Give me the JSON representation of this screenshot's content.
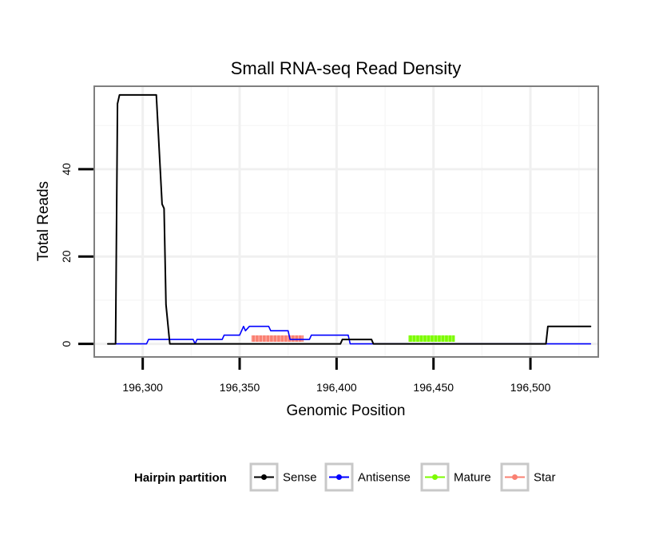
{
  "chart_data": {
    "type": "line",
    "title": "Small RNA-seq Read Density",
    "xlabel": "Genomic Position",
    "ylabel": "Total Reads",
    "xlim": [
      196275,
      196535
    ],
    "ylim": [
      -3,
      59
    ],
    "x_ticks": [
      196300,
      196350,
      196400,
      196450,
      196500
    ],
    "x_tick_labels": [
      "196,300",
      "196,350",
      "196,400",
      "196,450",
      "196,500"
    ],
    "y_ticks": [
      0,
      20,
      40
    ],
    "y_tick_labels": [
      "0",
      "20",
      "40"
    ],
    "grid": true,
    "legend": {
      "title": "Hairpin partition",
      "position": "bottom",
      "entries": [
        {
          "name": "Sense",
          "color": "#000000"
        },
        {
          "name": "Antisense",
          "color": "#0000ff"
        },
        {
          "name": "Mature",
          "color": "#7cfc00"
        },
        {
          "name": "Star",
          "color": "#fa8072"
        }
      ]
    },
    "series": [
      {
        "name": "Sense",
        "color": "#000000",
        "width": 2,
        "points": [
          [
            196282,
            0
          ],
          [
            196286,
            0
          ],
          [
            196287,
            55
          ],
          [
            196288,
            57
          ],
          [
            196307,
            57
          ],
          [
            196310,
            32
          ],
          [
            196311,
            31
          ],
          [
            196312,
            9
          ],
          [
            196314,
            0
          ],
          [
            196402,
            0
          ],
          [
            196403,
            1
          ],
          [
            196418,
            1
          ],
          [
            196419,
            0
          ],
          [
            196508,
            0
          ],
          [
            196509,
            4
          ],
          [
            196531,
            4
          ]
        ]
      },
      {
        "name": "Antisense",
        "color": "#0000ff",
        "width": 1.6,
        "points": [
          [
            196286,
            0
          ],
          [
            196302,
            0
          ],
          [
            196303,
            1
          ],
          [
            196313,
            1
          ],
          [
            196314,
            1
          ],
          [
            196326,
            1
          ],
          [
            196327,
            0
          ],
          [
            196328,
            1
          ],
          [
            196341,
            1
          ],
          [
            196342,
            2
          ],
          [
            196350,
            2
          ],
          [
            196352,
            4
          ],
          [
            196353,
            3
          ],
          [
            196355,
            4
          ],
          [
            196365,
            4
          ],
          [
            196366,
            3
          ],
          [
            196375,
            3
          ],
          [
            196376,
            1
          ],
          [
            196386,
            1
          ],
          [
            196387,
            2
          ],
          [
            196406,
            2
          ],
          [
            196407,
            0
          ],
          [
            196531,
            0
          ]
        ]
      },
      {
        "name": "Mature",
        "color": "#7cfc00",
        "width": 8,
        "points": [
          [
            196437,
            1.2
          ],
          [
            196461,
            1.2
          ]
        ]
      },
      {
        "name": "Star",
        "color": "#fa8072",
        "width": 8,
        "points": [
          [
            196356,
            1.2
          ],
          [
            196383,
            1.2
          ]
        ]
      }
    ]
  }
}
